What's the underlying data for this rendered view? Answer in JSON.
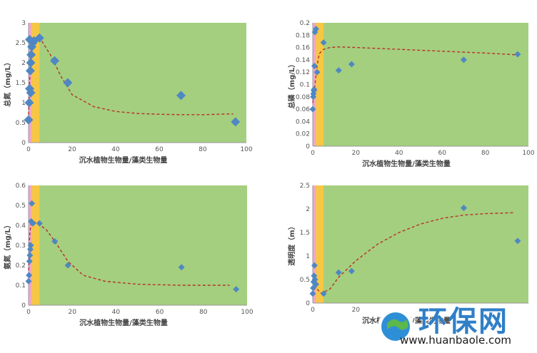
{
  "chart_data": [
    {
      "type": "scatter",
      "xlabel": "沉水植物生物量/藻类生物量",
      "ylabel": "总氮（mg/L）",
      "xlim": [
        0,
        100
      ],
      "ylim": [
        0,
        3
      ],
      "xticks": [
        0,
        20,
        40,
        60,
        80,
        100
      ],
      "yticks": [
        0,
        0.5,
        1,
        1.5,
        2,
        2.5,
        3
      ],
      "ytick_labels": [
        "0",
        "0.5",
        "1",
        "1.5",
        "2",
        "2.5",
        "3"
      ],
      "x": [
        0,
        0.3,
        0.5,
        0.8,
        1,
        1.2,
        1.5,
        2,
        2.5,
        5,
        12,
        18,
        70,
        95,
        0.5,
        1
      ],
      "y": [
        0.57,
        1.0,
        1.35,
        1.8,
        2.0,
        2.2,
        2.4,
        2.5,
        2.55,
        2.62,
        2.05,
        1.5,
        1.18,
        0.52,
        2.58,
        1.25
      ],
      "trend": {
        "x": [
          0,
          1,
          3,
          6,
          10,
          15,
          20,
          30,
          40,
          50,
          60,
          70,
          80,
          94
        ],
        "y": [
          0.7,
          2.3,
          2.62,
          2.55,
          2.2,
          1.65,
          1.2,
          0.9,
          0.78,
          0.73,
          0.71,
          0.7,
          0.7,
          0.72
        ]
      }
    },
    {
      "type": "scatter",
      "xlabel": "沉水植物生物量/藻类生物量",
      "ylabel": "总磷（mg/L）",
      "xlim": [
        0,
        100
      ],
      "ylim": [
        0,
        0.2
      ],
      "xticks": [
        0,
        20,
        40,
        60,
        80,
        100
      ],
      "yticks": [
        0,
        0.02,
        0.04,
        0.06,
        0.08,
        0.1,
        0.12,
        0.14,
        0.16,
        0.18,
        0.2
      ],
      "ytick_labels": [
        "0",
        "0.02",
        "0.04",
        "0.06",
        "0.08",
        "0.1",
        "0.12",
        "0.14",
        "0.16",
        "0.18",
        "0.2"
      ],
      "x": [
        0,
        0.2,
        0.5,
        0.8,
        1,
        1.5,
        2,
        5,
        12,
        18,
        70,
        95,
        0.3,
        0.6
      ],
      "y": [
        0.06,
        0.08,
        0.09,
        0.13,
        0.185,
        0.19,
        0.12,
        0.168,
        0.123,
        0.133,
        0.14,
        0.149,
        0.085,
        0.092
      ],
      "trend": {
        "x": [
          0,
          1,
          2,
          3,
          5,
          8,
          12,
          20,
          40,
          60,
          80,
          95
        ],
        "y": [
          0.07,
          0.1,
          0.13,
          0.15,
          0.157,
          0.16,
          0.161,
          0.16,
          0.157,
          0.154,
          0.151,
          0.148
        ]
      }
    },
    {
      "type": "scatter",
      "xlabel": "沉水植物生物量/藻类生物量",
      "ylabel": "氨氮（mg/L）",
      "xlim": [
        0,
        100
      ],
      "ylim": [
        0,
        0.6
      ],
      "xticks": [
        0,
        20,
        40,
        60,
        80,
        100
      ],
      "yticks": [
        0,
        0.1,
        0.2,
        0.3,
        0.4,
        0.5,
        0.6
      ],
      "ytick_labels": [
        "0",
        "0.1",
        "0.2",
        "0.3",
        "0.4",
        "0.5",
        "0.6"
      ],
      "x": [
        0,
        0.2,
        0.4,
        0.6,
        0.8,
        1,
        1.2,
        1.5,
        2,
        5,
        12,
        18,
        70,
        95
      ],
      "y": [
        0.12,
        0.15,
        0.22,
        0.25,
        0.28,
        0.3,
        0.42,
        0.51,
        0.41,
        0.41,
        0.32,
        0.2,
        0.19,
        0.08
      ],
      "trend": {
        "x": [
          0,
          0.5,
          1,
          2,
          4,
          8,
          12,
          18,
          25,
          35,
          50,
          70,
          92
        ],
        "y": [
          0.15,
          0.35,
          0.4,
          0.42,
          0.41,
          0.38,
          0.32,
          0.22,
          0.15,
          0.12,
          0.105,
          0.1,
          0.1
        ]
      }
    },
    {
      "type": "scatter",
      "xlabel": "沉水植物生物量/藻类生物量",
      "ylabel": "透明度（m）",
      "xlim": [
        0,
        100
      ],
      "ylim": [
        0,
        2.5
      ],
      "xticks": [
        0,
        20
      ],
      "yticks": [
        0,
        0.5,
        1,
        1.5,
        2,
        2.5
      ],
      "ytick_labels": [
        "0",
        "0.5",
        "1",
        "1.5",
        "2",
        "2.5"
      ],
      "x": [
        0,
        0.2,
        0.4,
        0.6,
        0.8,
        1,
        1.5,
        5,
        12,
        18,
        70,
        95
      ],
      "y": [
        0.2,
        0.32,
        0.45,
        0.58,
        0.8,
        0.5,
        0.4,
        0.2,
        0.65,
        0.68,
        2.02,
        1.32
      ],
      "trend": {
        "x": [
          0,
          2,
          4,
          8,
          12,
          20,
          30,
          40,
          50,
          60,
          70,
          80,
          93
        ],
        "y": [
          0.6,
          0.3,
          0.2,
          0.3,
          0.55,
          0.9,
          1.25,
          1.5,
          1.68,
          1.8,
          1.87,
          1.9,
          1.92
        ]
      }
    }
  ],
  "watermark": {
    "brand": "环保网",
    "url": "www.huanbaole.com"
  },
  "colors": {
    "plot_bg": "#a4cf7e",
    "band_yellow": "#f7c744",
    "band_pink": "#f2a7c7",
    "marker": "#4f87c4",
    "trend": "#b7312c"
  }
}
